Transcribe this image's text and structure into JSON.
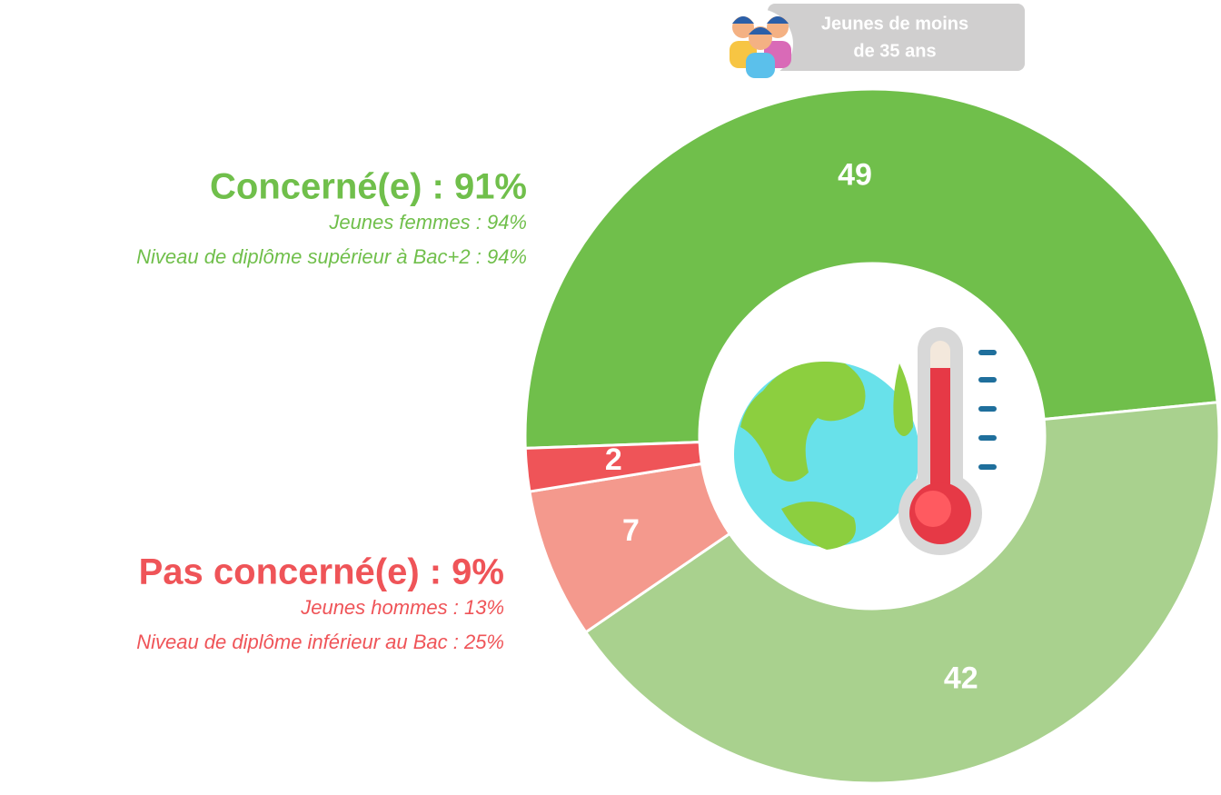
{
  "chart_data": {
    "type": "donut",
    "values": [
      49,
      42,
      7,
      2
    ],
    "colors": [
      "#70bf4b",
      "#a9d18e",
      "#f4998d",
      "#ef5458"
    ],
    "badge": [
      "Jeunes de moins",
      "de 35 ans"
    ],
    "groups": [
      {
        "title": "Concerné(e) : 91%",
        "color": "#70bf4b",
        "details": [
          "Jeunes femmes : 94%",
          "Niveau de diplôme supérieur à Bac+2 : 94%"
        ]
      },
      {
        "title": "Pas concerné(e) : 9%",
        "color": "#ef5458",
        "details": [
          "Jeunes hommes : 13%",
          "Niveau de diplôme inférieur au Bac : 25%"
        ]
      }
    ]
  }
}
